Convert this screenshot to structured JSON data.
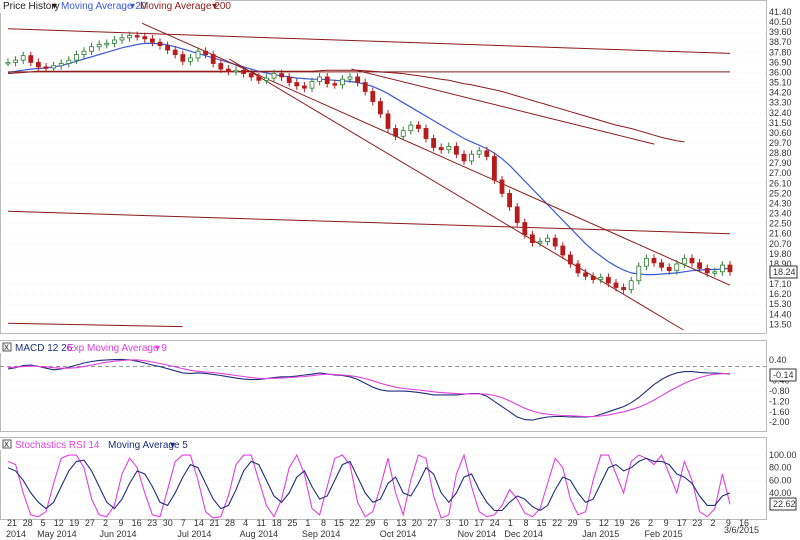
{
  "colors": {
    "price_up": "#2e7d32",
    "price_down": "#b71c1c",
    "ma20": "#3a5bd9",
    "ma200": "#8b1a1a",
    "trendline": "#8b1a1a",
    "macd": "#1f2f7a",
    "macd_signal": "#e040e0",
    "rsi": "#e040e0",
    "rsi_ma": "#1f2f7a",
    "grid": "#dcdcdc"
  },
  "legend": {
    "price": [
      "Price History",
      "Moving Average 20",
      "Moving Average 200"
    ],
    "macd": [
      "MACD 12 26",
      "Exp Moving Average 9"
    ],
    "rsi": [
      "Stochastics RSI 14",
      "Moving Average 5"
    ],
    "close_glyph": "x",
    "dropdown_glyph": "▾"
  },
  "badges": {
    "last_price": "18.24",
    "macd": "-0.14",
    "rsi": "22.62",
    "end_date": "3/6/2015"
  },
  "x_axis": {
    "day_ticks": [
      "21",
      "28",
      "5",
      "12",
      "19",
      "27",
      "2",
      "9",
      "16",
      "23",
      "30",
      "7",
      "14",
      "21",
      "28",
      "4",
      "11",
      "18",
      "25",
      "1",
      "8",
      "15",
      "22",
      "29",
      "6",
      "13",
      "20",
      "27",
      "3",
      "10",
      "17",
      "24",
      "1",
      "8",
      "15",
      "22",
      "29",
      "5",
      "12",
      "19",
      "26",
      "2",
      "9",
      "17",
      "23",
      "2",
      "9",
      "16"
    ],
    "month_labels": [
      "2014",
      "May 2014",
      "Jun 2014",
      "Jul 2014",
      "Aug 2014",
      "Sep 2014",
      "Oct 2014",
      "Nov 2014",
      "Dec 2014",
      "Jan 2015",
      "Feb 2015"
    ]
  },
  "chart_data": [
    {
      "type": "candlestick",
      "ylim": [
        13.0,
        41.4
      ],
      "yticks": [
        "41.40",
        "40.50",
        "39.60",
        "38.70",
        "37.80",
        "36.90",
        "36.00",
        "35.10",
        "34.20",
        "33.30",
        "32.40",
        "31.50",
        "30.60",
        "29.70",
        "28.80",
        "27.90",
        "27.00",
        "26.10",
        "25.20",
        "24.30",
        "23.40",
        "22.50",
        "21.60",
        "20.70",
        "19.80",
        "18.90",
        "17.10",
        "16.20",
        "15.30",
        "14.40",
        "13.50"
      ],
      "close": [
        36.9,
        37.1,
        37.5,
        36.9,
        36.5,
        36.4,
        36.6,
        36.8,
        37.1,
        37.6,
        37.9,
        38.3,
        38.5,
        38.6,
        38.9,
        39.1,
        39.3,
        39.2,
        39.0,
        38.7,
        38.4,
        38.0,
        37.6,
        37.0,
        37.3,
        37.9,
        37.6,
        36.8,
        36.3,
        36.1,
        36.2,
        35.9,
        35.6,
        35.3,
        35.5,
        35.9,
        35.6,
        35.1,
        34.8,
        34.6,
        35.2,
        35.6,
        35.0,
        34.9,
        35.4,
        35.6,
        35.1,
        34.3,
        33.4,
        32.3,
        31.0,
        30.3,
        30.8,
        31.3,
        31.0,
        30.1,
        29.3,
        29.1,
        29.4,
        28.7,
        28.1,
        28.7,
        29.0,
        28.5,
        26.4,
        25.2,
        24.0,
        22.6,
        21.5,
        20.8,
        20.9,
        21.2,
        20.5,
        19.7,
        18.9,
        18.1,
        17.8,
        17.5,
        17.7,
        17.2,
        16.8,
        16.6,
        17.4,
        18.7,
        19.4,
        19.0,
        18.6,
        18.3,
        18.9,
        19.4,
        19.0,
        18.5,
        18.1,
        18.2,
        18.8,
        18.2
      ],
      "ma20": [
        36.0,
        36.1,
        36.2,
        36.3,
        36.35,
        36.4,
        36.5,
        36.6,
        36.8,
        37.0,
        37.2,
        37.4,
        37.6,
        37.8,
        38.0,
        38.2,
        38.35,
        38.5,
        38.6,
        38.6,
        38.55,
        38.45,
        38.3,
        38.1,
        37.9,
        37.7,
        37.5,
        37.3,
        37.1,
        36.9,
        36.7,
        36.5,
        36.3,
        36.1,
        35.95,
        35.8,
        35.7,
        35.6,
        35.5,
        35.45,
        35.4,
        35.4,
        35.35,
        35.3,
        35.25,
        35.2,
        35.1,
        34.95,
        34.75,
        34.45,
        34.1,
        33.7,
        33.3,
        32.9,
        32.5,
        32.1,
        31.7,
        31.3,
        30.9,
        30.5,
        30.1,
        29.8,
        29.5,
        29.2,
        28.8,
        28.3,
        27.7,
        27.0,
        26.3,
        25.6,
        24.9,
        24.2,
        23.5,
        22.8,
        22.1,
        21.4,
        20.7,
        20.1,
        19.6,
        19.1,
        18.7,
        18.35,
        18.1,
        18.0,
        17.95,
        17.95,
        18.0,
        18.05,
        18.1,
        18.2,
        18.3,
        18.35,
        18.4,
        18.4,
        18.45,
        18.5
      ],
      "ma200": [
        35.9,
        35.95,
        36.0,
        36.05,
        36.1,
        36.1,
        36.1,
        36.1,
        36.1,
        36.1,
        36.1,
        36.1,
        36.1,
        36.1,
        36.1,
        36.1,
        36.1,
        36.1,
        36.1,
        36.1,
        36.1,
        36.1,
        36.1,
        36.1,
        36.1,
        36.1,
        36.1,
        36.1,
        36.1,
        36.1,
        36.1,
        36.1,
        36.1,
        36.1,
        36.1,
        36.1,
        36.1,
        36.1,
        36.1,
        36.1,
        36.1,
        36.15,
        36.2,
        36.2,
        36.2,
        36.2,
        36.2,
        36.15,
        36.1,
        36.05,
        36.0,
        35.95,
        35.9,
        35.8,
        35.7,
        35.6,
        35.5,
        35.4,
        35.3,
        35.15,
        35.0,
        34.9,
        34.75,
        34.6,
        34.45,
        34.3,
        34.1,
        33.9,
        33.7,
        33.5,
        33.3,
        33.1,
        32.9,
        32.7,
        32.5,
        32.3,
        32.1,
        31.9,
        31.7,
        31.5,
        31.3,
        31.15,
        31.0,
        30.8,
        30.6,
        30.4,
        30.2,
        30.05,
        29.9,
        29.8
      ],
      "trendlines": [
        {
          "x1": 0,
          "y1": 39.9,
          "x2": 124,
          "y2": 37.7
        },
        {
          "x1": 0,
          "y1": 36.05,
          "x2": 124,
          "y2": 36.05
        },
        {
          "x1": 0,
          "y1": 23.6,
          "x2": 124,
          "y2": 21.6
        },
        {
          "x1": 23,
          "y1": 40.4,
          "x2": 124,
          "y2": 17.0
        },
        {
          "x1": 38,
          "y1": 37.2,
          "x2": 116,
          "y2": 13.0
        },
        {
          "x1": 59,
          "y1": 36.3,
          "x2": 111,
          "y2": 29.6
        },
        {
          "x1": 0,
          "y1": 13.6,
          "x2": 30,
          "y2": 13.3
        }
      ]
    },
    {
      "type": "line",
      "ylim": [
        -2.3,
        0.55
      ],
      "yticks": [
        "0.40",
        "-0.40",
        "-0.80",
        "-1.20",
        "-1.60",
        "-2.00"
      ],
      "zero_line": 0.15,
      "series": [
        {
          "name": "MACD 12 26",
          "values": [
            0.05,
            0.1,
            0.18,
            0.2,
            0.15,
            0.08,
            0.02,
            0.05,
            0.12,
            0.2,
            0.28,
            0.34,
            0.38,
            0.4,
            0.41,
            0.42,
            0.4,
            0.35,
            0.28,
            0.2,
            0.14,
            0.06,
            -0.02,
            -0.1,
            -0.12,
            -0.1,
            -0.12,
            -0.16,
            -0.2,
            -0.25,
            -0.3,
            -0.34,
            -0.36,
            -0.35,
            -0.32,
            -0.28,
            -0.25,
            -0.25,
            -0.22,
            -0.18,
            -0.15,
            -0.1,
            -0.14,
            -0.18,
            -0.2,
            -0.25,
            -0.35,
            -0.5,
            -0.65,
            -0.75,
            -0.8,
            -0.8,
            -0.8,
            -0.82,
            -0.85,
            -0.9,
            -0.95,
            -0.95,
            -0.95,
            -0.95,
            -0.92,
            -0.9,
            -0.9,
            -1.0,
            -1.2,
            -1.4,
            -1.6,
            -1.8,
            -1.9,
            -1.92,
            -1.85,
            -1.8,
            -1.78,
            -1.78,
            -1.8,
            -1.8,
            -1.8,
            -1.78,
            -1.7,
            -1.6,
            -1.5,
            -1.4,
            -1.25,
            -1.05,
            -0.8,
            -0.55,
            -0.35,
            -0.2,
            -0.1,
            -0.05,
            -0.05,
            -0.08,
            -0.1,
            -0.11,
            -0.12,
            -0.14
          ]
        },
        {
          "name": "Exp Moving Average 9",
          "values": [
            0.1,
            0.12,
            0.14,
            0.16,
            0.15,
            0.13,
            0.1,
            0.08,
            0.08,
            0.1,
            0.15,
            0.2,
            0.26,
            0.31,
            0.35,
            0.38,
            0.4,
            0.4,
            0.37,
            0.32,
            0.26,
            0.2,
            0.13,
            0.06,
            0.0,
            -0.04,
            -0.07,
            -0.09,
            -0.12,
            -0.16,
            -0.2,
            -0.24,
            -0.28,
            -0.31,
            -0.32,
            -0.31,
            -0.3,
            -0.28,
            -0.26,
            -0.24,
            -0.21,
            -0.17,
            -0.15,
            -0.16,
            -0.18,
            -0.21,
            -0.25,
            -0.32,
            -0.4,
            -0.5,
            -0.58,
            -0.65,
            -0.7,
            -0.73,
            -0.76,
            -0.79,
            -0.83,
            -0.86,
            -0.88,
            -0.9,
            -0.91,
            -0.91,
            -0.91,
            -0.92,
            -0.97,
            -1.05,
            -1.18,
            -1.32,
            -1.46,
            -1.57,
            -1.65,
            -1.69,
            -1.72,
            -1.74,
            -1.75,
            -1.77,
            -1.78,
            -1.78,
            -1.76,
            -1.72,
            -1.66,
            -1.6,
            -1.52,
            -1.42,
            -1.3,
            -1.15,
            -0.98,
            -0.8,
            -0.65,
            -0.5,
            -0.38,
            -0.28,
            -0.2,
            -0.15,
            -0.13,
            -0.12
          ]
        }
      ]
    },
    {
      "type": "line",
      "ylim": [
        0,
        105
      ],
      "yticks": [
        "100.00",
        "80.00",
        "60.00",
        "40.00",
        "20.00"
      ],
      "series": [
        {
          "name": "Stochastics RSI 14",
          "values": [
            90,
            85,
            40,
            5,
            2,
            10,
            55,
            95,
            100,
            100,
            80,
            30,
            5,
            2,
            20,
            70,
            95,
            80,
            40,
            5,
            2,
            45,
            90,
            100,
            100,
            60,
            10,
            0,
            2,
            35,
            85,
            100,
            100,
            60,
            20,
            2,
            30,
            80,
            100,
            70,
            15,
            5,
            50,
            95,
            100,
            85,
            25,
            2,
            10,
            50,
            95,
            40,
            5,
            60,
            100,
            95,
            35,
            0,
            5,
            70,
            100,
            50,
            10,
            2,
            5,
            20,
            45,
            30,
            8,
            2,
            15,
            55,
            95,
            80,
            30,
            5,
            10,
            60,
            100,
            100,
            70,
            40,
            90,
            100,
            95,
            85,
            100,
            70,
            40,
            90,
            60,
            10,
            2,
            15,
            70,
            22
          ]
        },
        {
          "name": "Moving Average 5",
          "values": [
            80,
            75,
            60,
            40,
            25,
            15,
            25,
            50,
            75,
            90,
            92,
            75,
            50,
            25,
            15,
            30,
            55,
            75,
            70,
            50,
            25,
            20,
            40,
            65,
            85,
            80,
            55,
            30,
            15,
            20,
            45,
            75,
            90,
            85,
            60,
            35,
            25,
            40,
            65,
            75,
            50,
            30,
            35,
            60,
            85,
            90,
            65,
            40,
            25,
            30,
            55,
            65,
            40,
            35,
            55,
            80,
            70,
            40,
            25,
            40,
            65,
            70,
            45,
            25,
            12,
            12,
            25,
            35,
            30,
            18,
            12,
            20,
            45,
            65,
            60,
            40,
            25,
            30,
            55,
            80,
            85,
            75,
            80,
            90,
            95,
            90,
            90,
            85,
            70,
            65,
            55,
            35,
            20,
            20,
            35,
            40
          ]
        }
      ]
    }
  ]
}
